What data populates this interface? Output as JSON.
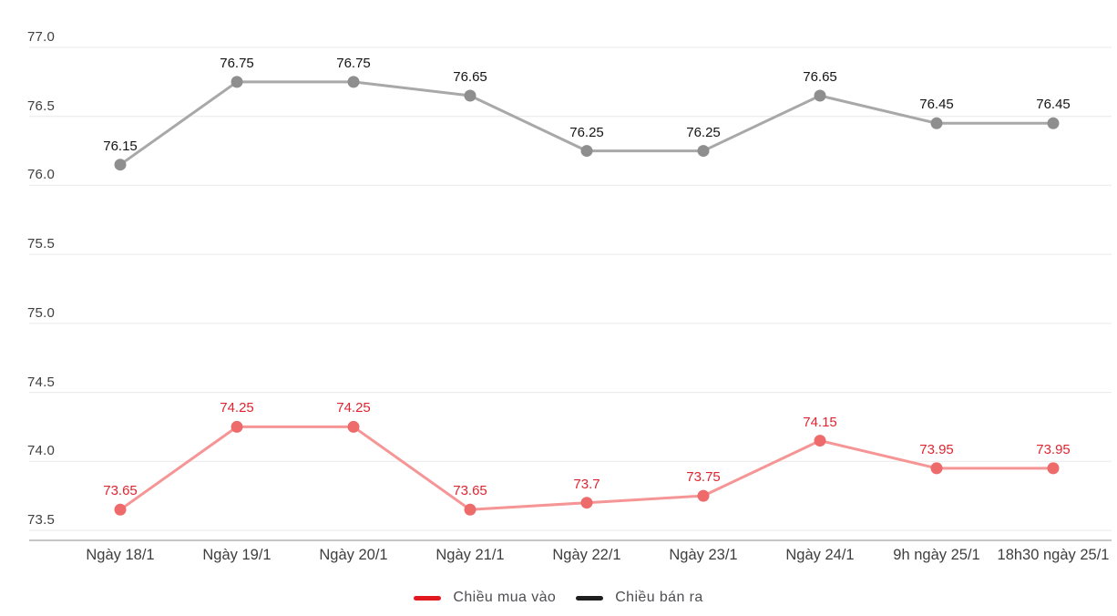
{
  "chart_data": {
    "type": "line",
    "title": "",
    "xlabel": "",
    "ylabel": "",
    "categories": [
      "Ngày 18/1",
      "Ngày 19/1",
      "Ngày 20/1",
      "Ngày 21/1",
      "Ngày 22/1",
      "Ngày 23/1",
      "Ngày 24/1",
      "9h ngày 25/1",
      "18h30 ngày 25/1"
    ],
    "series": [
      {
        "name": "Chiều mua vào",
        "values": [
          73.65,
          74.25,
          74.25,
          73.65,
          73.7,
          73.75,
          74.15,
          73.95,
          73.95
        ],
        "line_color": "#f69595",
        "marker_color": "#ee6b6b",
        "label_color": "#e02530",
        "legend_color": "#e1181e"
      },
      {
        "name": "Chiều bán ra",
        "values": [
          76.15,
          76.75,
          76.75,
          76.65,
          76.25,
          76.25,
          76.65,
          76.45,
          76.45
        ],
        "line_color": "#a8a8a8",
        "marker_color": "#8e8e8e",
        "label_color": "#141414",
        "legend_color": "#1f1f1f"
      }
    ],
    "yticks": [
      77.0,
      76.5,
      76.0,
      75.5,
      75.0,
      74.5,
      74.0,
      73.5
    ],
    "ylim": [
      73.5,
      77.0
    ],
    "grid": true,
    "grid_color": "#e9e9e9",
    "axis_line_color": "#c6c6c6",
    "tick_label_color": "#3e3e3e",
    "legend_position": "bottom"
  }
}
